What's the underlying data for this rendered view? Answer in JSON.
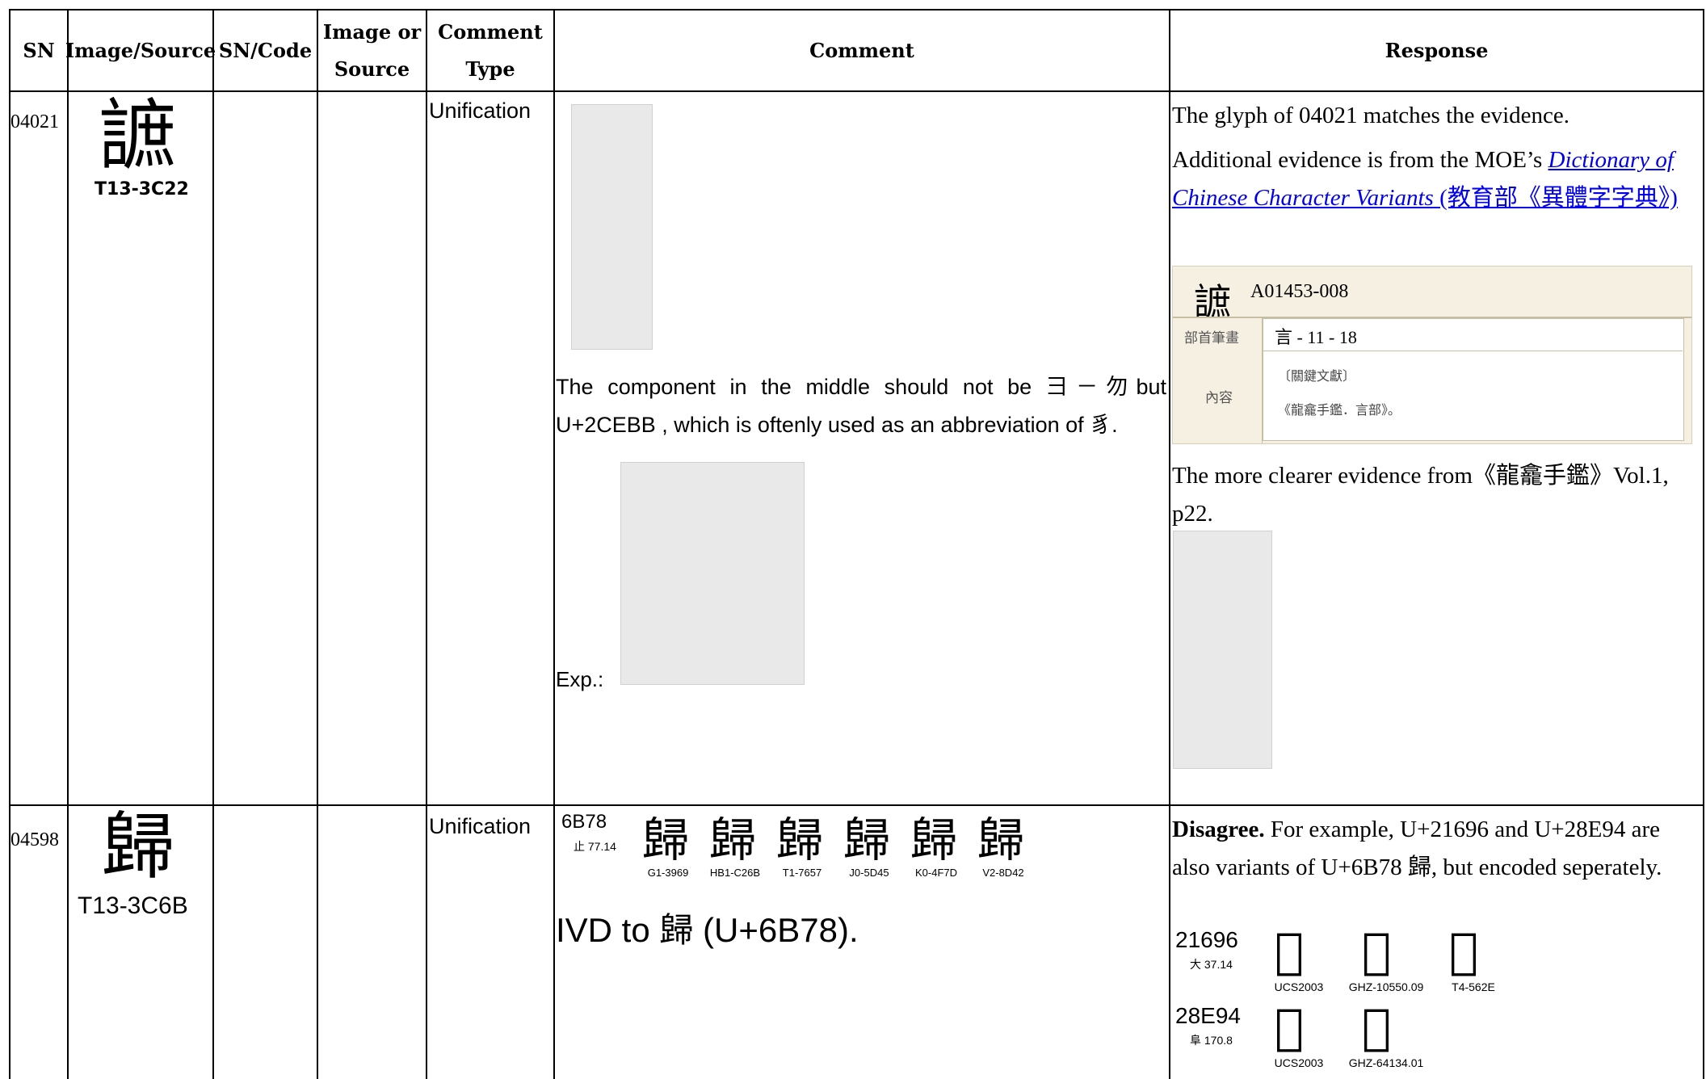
{
  "table": {
    "headers": [
      "SN",
      "Image/Source",
      "SN/Code",
      "Image or Source",
      "Comment Type",
      "Comment",
      "Response"
    ],
    "rows": [
      {
        "sn": "04021",
        "glyph": "謶",
        "source": "T13-3C22",
        "comment_type": "Unification",
        "comment": "The component in the middle should not be ⺕－勿but U+2CEBB , which is oftenly used as an abbreviation of 豸.",
        "example_label": "Exp.:",
        "response": [
          "The glyph of 04021 matches the evidence.",
          "Additional evidence is from the MOE’s ",
          "Dictionary of Chinese Character Variants",
          " (教育部《異體字字典》)",
          "The more clearer evidence from《龍龕手鑑》Vol.1, p22."
        ],
        "card": {
          "code": "A01453-008",
          "label1": "部首筆畫",
          "value1": "言 - 11 - 18",
          "label2": "內容",
          "value2": "〔關鍵文獻〕",
          "value3": "《龍龕手鑑．言部》。"
        }
      },
      {
        "sn": "04598",
        "glyph": "歸",
        "source": "T13-3C6B",
        "comment_type": "Unification",
        "code": "6B78",
        "radical": "止 77.14",
        "glyph_sources": [
          "G1-3969",
          "HB1-C26B",
          "T1-7657",
          "J0-5D45",
          "K0-4F7D",
          "V2-8D42"
        ],
        "comment": "IVD to 歸 (U+6B78).",
        "response": [
          "Disagree.",
          " For example, U+21696 and U+28E94 are also variants of U+6B78 歸, but encoded seperately."
        ],
        "variants": [
          {
            "code": "21696",
            "radical": "大 37.14",
            "glyph": "𡚖",
            "sources": [
              "UCS2003",
              "GHZ-10550.09",
              "T4-562E"
            ]
          },
          {
            "code": "28E94",
            "radical": "阜 170.8",
            "glyph": "𨺔",
            "sources": [
              "UCS2003",
              "GHZ-64134.01"
            ]
          }
        ]
      }
    ]
  }
}
